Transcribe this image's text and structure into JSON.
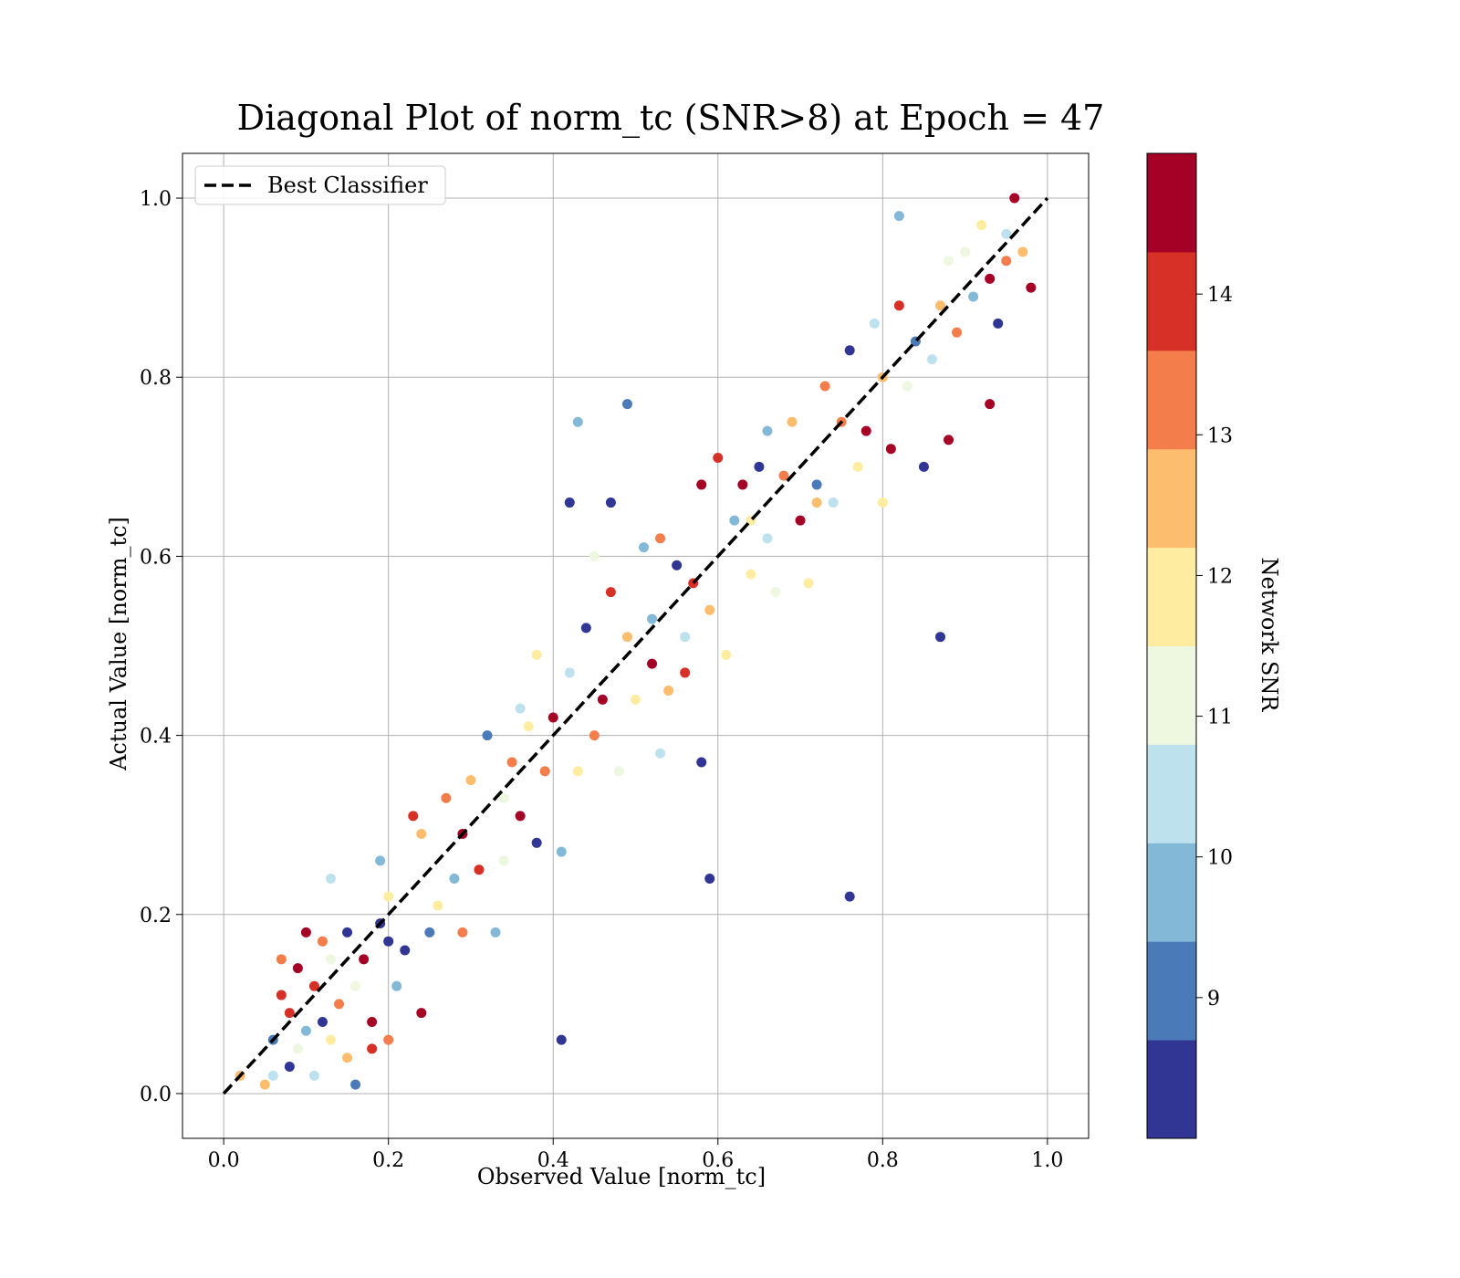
{
  "chart_data": {
    "type": "scatter",
    "title": "Diagonal Plot of norm_tc (SNR>8) at Epoch = 47",
    "xlabel": "Observed Value [norm_tc]",
    "ylabel": "Actual Value [norm_tc]",
    "xlim": [
      -0.05,
      1.05
    ],
    "ylim": [
      -0.05,
      1.05
    ],
    "xticks": [
      "0.0",
      "0.2",
      "0.4",
      "0.6",
      "0.8",
      "1.0"
    ],
    "yticks": [
      "0.0",
      "0.2",
      "0.4",
      "0.6",
      "0.8",
      "1.0"
    ],
    "grid": true,
    "legend": {
      "position": "upper-left",
      "entries": [
        "Best Classifier"
      ]
    },
    "reference_line": {
      "name": "Best Classifier",
      "style": "dashed",
      "color": "#000000",
      "x": [
        0,
        1
      ],
      "y": [
        0,
        1
      ]
    },
    "colorbar": {
      "label": "Network SNR",
      "range": [
        8,
        15
      ],
      "ticks": [
        "9",
        "10",
        "11",
        "12",
        "13",
        "14"
      ],
      "colors": [
        "#313695",
        "#4a7ab7",
        "#83b8d7",
        "#bde2ee",
        "#eef7e0",
        "#feeda1",
        "#fdbd6e",
        "#f47d4c",
        "#d73027",
        "#a50026"
      ]
    },
    "points": [
      [
        0.05,
        0.01,
        12.5
      ],
      [
        0.06,
        0.02,
        10.7
      ],
      [
        0.06,
        0.06,
        9.0
      ],
      [
        0.07,
        0.11,
        14.0
      ],
      [
        0.08,
        0.03,
        8.3
      ],
      [
        0.08,
        0.09,
        13.8
      ],
      [
        0.09,
        0.05,
        11.2
      ],
      [
        0.09,
        0.14,
        14.6
      ],
      [
        0.1,
        0.07,
        9.6
      ],
      [
        0.1,
        0.18,
        14.8
      ],
      [
        0.11,
        0.02,
        10.4
      ],
      [
        0.11,
        0.12,
        14.1
      ],
      [
        0.12,
        0.08,
        8.7
      ],
      [
        0.12,
        0.17,
        13.3
      ],
      [
        0.13,
        0.06,
        11.6
      ],
      [
        0.13,
        0.24,
        10.3
      ],
      [
        0.14,
        0.1,
        13.6
      ],
      [
        0.15,
        0.04,
        12.7
      ],
      [
        0.15,
        0.18,
        8.5
      ],
      [
        0.16,
        0.01,
        8.9
      ],
      [
        0.16,
        0.12,
        10.9
      ],
      [
        0.17,
        0.15,
        14.3
      ],
      [
        0.18,
        0.08,
        14.9
      ],
      [
        0.19,
        0.19,
        8.2
      ],
      [
        0.19,
        0.26,
        9.4
      ],
      [
        0.2,
        0.06,
        13.2
      ],
      [
        0.2,
        0.22,
        12.2
      ],
      [
        0.21,
        0.12,
        9.9
      ],
      [
        0.22,
        0.16,
        8.6
      ],
      [
        0.23,
        0.31,
        14.2
      ],
      [
        0.24,
        0.29,
        12.6
      ],
      [
        0.24,
        0.09,
        14.7
      ],
      [
        0.25,
        0.18,
        9.1
      ],
      [
        0.26,
        0.21,
        11.7
      ],
      [
        0.27,
        0.33,
        13.0
      ],
      [
        0.28,
        0.24,
        10.1
      ],
      [
        0.29,
        0.29,
        14.5
      ],
      [
        0.3,
        0.35,
        12.4
      ],
      [
        0.31,
        0.25,
        13.9
      ],
      [
        0.32,
        0.4,
        8.8
      ],
      [
        0.33,
        0.18,
        9.5
      ],
      [
        0.34,
        0.33,
        11.3
      ],
      [
        0.35,
        0.37,
        12.9
      ],
      [
        0.36,
        0.31,
        14.4
      ],
      [
        0.36,
        0.43,
        10.2
      ],
      [
        0.37,
        0.41,
        12.0
      ],
      [
        0.38,
        0.28,
        8.4
      ],
      [
        0.39,
        0.36,
        13.4
      ],
      [
        0.4,
        0.42,
        14.6
      ],
      [
        0.41,
        0.27,
        9.7
      ],
      [
        0.41,
        0.06,
        8.3
      ],
      [
        0.42,
        0.47,
        10.6
      ],
      [
        0.42,
        0.66,
        8.2
      ],
      [
        0.43,
        0.36,
        12.1
      ],
      [
        0.43,
        0.75,
        9.8
      ],
      [
        0.44,
        0.52,
        8.6
      ],
      [
        0.45,
        0.4,
        13.1
      ],
      [
        0.46,
        0.44,
        14.8
      ],
      [
        0.47,
        0.56,
        13.7
      ],
      [
        0.47,
        0.66,
        8.4
      ],
      [
        0.48,
        0.36,
        10.8
      ],
      [
        0.49,
        0.51,
        12.3
      ],
      [
        0.49,
        0.77,
        9.3
      ],
      [
        0.5,
        0.44,
        11.5
      ],
      [
        0.51,
        0.61,
        9.9
      ],
      [
        0.52,
        0.48,
        14.4
      ],
      [
        0.53,
        0.62,
        13.5
      ],
      [
        0.54,
        0.45,
        12.8
      ],
      [
        0.55,
        0.59,
        8.5
      ],
      [
        0.56,
        0.51,
        10.4
      ],
      [
        0.57,
        0.57,
        14.2
      ],
      [
        0.58,
        0.68,
        14.9
      ],
      [
        0.58,
        0.37,
        8.2
      ],
      [
        0.59,
        0.54,
        12.6
      ],
      [
        0.59,
        0.24,
        8.4
      ],
      [
        0.6,
        0.71,
        13.8
      ],
      [
        0.61,
        0.49,
        11.9
      ],
      [
        0.62,
        0.64,
        9.6
      ],
      [
        0.63,
        0.68,
        14.5
      ],
      [
        0.64,
        0.58,
        12.2
      ],
      [
        0.65,
        0.7,
        8.7
      ],
      [
        0.66,
        0.62,
        10.7
      ],
      [
        0.67,
        0.56,
        11.0
      ],
      [
        0.68,
        0.69,
        13.6
      ],
      [
        0.69,
        0.75,
        12.5
      ],
      [
        0.7,
        0.64,
        14.7
      ],
      [
        0.71,
        0.57,
        12.0
      ],
      [
        0.72,
        0.68,
        9.2
      ],
      [
        0.73,
        0.79,
        12.9
      ],
      [
        0.74,
        0.66,
        10.3
      ],
      [
        0.75,
        0.75,
        13.3
      ],
      [
        0.76,
        0.83,
        8.6
      ],
      [
        0.76,
        0.22,
        8.3
      ],
      [
        0.77,
        0.7,
        11.6
      ],
      [
        0.78,
        0.74,
        14.3
      ],
      [
        0.79,
        0.86,
        10.5
      ],
      [
        0.8,
        0.8,
        12.7
      ],
      [
        0.81,
        0.72,
        14.9
      ],
      [
        0.82,
        0.88,
        13.9
      ],
      [
        0.82,
        0.98,
        9.5
      ],
      [
        0.83,
        0.79,
        11.1
      ],
      [
        0.84,
        0.84,
        8.9
      ],
      [
        0.85,
        0.7,
        8.4
      ],
      [
        0.86,
        0.82,
        10.2
      ],
      [
        0.87,
        0.88,
        12.4
      ],
      [
        0.87,
        0.51,
        8.2
      ],
      [
        0.88,
        0.73,
        14.8
      ],
      [
        0.89,
        0.85,
        13.2
      ],
      [
        0.9,
        0.94,
        11.4
      ],
      [
        0.91,
        0.89,
        9.8
      ],
      [
        0.92,
        0.97,
        12.1
      ],
      [
        0.93,
        0.91,
        14.6
      ],
      [
        0.93,
        0.77,
        14.7
      ],
      [
        0.94,
        0.86,
        8.7
      ],
      [
        0.95,
        0.96,
        10.6
      ],
      [
        0.95,
        0.93,
        13.0
      ],
      [
        0.96,
        1.0,
        14.9
      ],
      [
        0.97,
        0.94,
        12.3
      ],
      [
        0.98,
        0.9,
        14.8
      ],
      [
        0.02,
        0.02,
        12.8
      ],
      [
        0.13,
        0.15,
        11.0
      ],
      [
        0.18,
        0.05,
        14.0
      ],
      [
        0.29,
        0.18,
        13.5
      ],
      [
        0.38,
        0.49,
        12.0
      ],
      [
        0.52,
        0.53,
        9.4
      ],
      [
        0.64,
        0.64,
        11.8
      ],
      [
        0.72,
        0.66,
        12.6
      ],
      [
        0.88,
        0.93,
        10.9
      ],
      [
        0.45,
        0.6,
        11.3
      ],
      [
        0.56,
        0.47,
        14.1
      ],
      [
        0.66,
        0.74,
        10.0
      ],
      [
        0.34,
        0.26,
        10.9
      ],
      [
        0.07,
        0.15,
        13.1
      ],
      [
        0.2,
        0.17,
        8.5
      ],
      [
        0.53,
        0.38,
        10.5
      ],
      [
        0.8,
        0.66,
        11.8
      ]
    ]
  }
}
